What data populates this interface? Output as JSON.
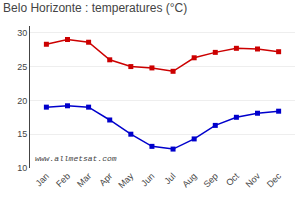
{
  "chart_data": {
    "type": "line",
    "title": "Belo Horizonte : temperatures (°C)",
    "categories": [
      "Jan",
      "Feb",
      "Mar",
      "Apr",
      "May",
      "Jun",
      "Jul",
      "Aug",
      "Sep",
      "Oct",
      "Nov",
      "Dec"
    ],
    "series": [
      {
        "color": "#cc0000",
        "values": [
          28.3,
          29.0,
          28.6,
          26.0,
          25.0,
          24.8,
          24.3,
          26.3,
          27.1,
          27.7,
          27.6,
          27.2
        ]
      },
      {
        "color": "#0000cc",
        "values": [
          19.0,
          19.2,
          19.0,
          17.1,
          15.0,
          13.2,
          12.8,
          14.3,
          16.3,
          17.5,
          18.1,
          18.4
        ]
      }
    ],
    "marker": "square",
    "ylim": [
      10,
      31
    ],
    "yticks": [
      10,
      15,
      20,
      25,
      30
    ],
    "grid": true,
    "annotations": [
      "www.allmetsat.com"
    ]
  }
}
